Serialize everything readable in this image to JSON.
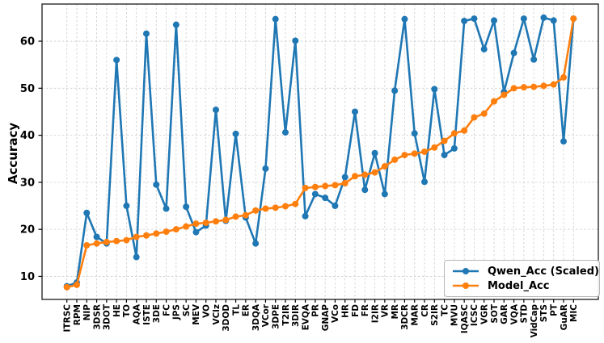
{
  "chart_data": {
    "type": "line",
    "title": "",
    "xlabel": "",
    "ylabel": "Accuracy",
    "ylim": [
      5.1,
      67.9
    ],
    "yticks": [
      10,
      20,
      30,
      40,
      50,
      60
    ],
    "grid": "dashed-both-axes",
    "legend_position": "lower right",
    "categories": [
      "ITRSC",
      "RPM",
      "NIP",
      "3DSR",
      "3DOT",
      "HE",
      "TO",
      "AQA",
      "ISTE",
      "3DE",
      "FC",
      "JPS",
      "SC",
      "MEV",
      "VO",
      "VClz",
      "3DOD",
      "TL",
      "ER",
      "3DQA",
      "VCor",
      "3DPE",
      "T2IR",
      "3DIR",
      "EVQA",
      "PR",
      "GNAP",
      "VCo",
      "HR",
      "FD",
      "FR",
      "I2IR",
      "VR",
      "MR",
      "3DCR",
      "MAR",
      "CR",
      "S2IR",
      "TC",
      "MVU",
      "IQASC",
      "ICSC",
      "VGR",
      "SOT",
      "GAR",
      "VQA",
      "STD",
      "VidCap",
      "STS",
      "PT",
      "GuAR",
      "MIC"
    ],
    "series": [
      {
        "name": "Qwen_Acc (Scaled)",
        "color": "#1f77b4",
        "values": [
          7.9,
          8.7,
          23.5,
          18.4,
          17.0,
          56.0,
          25.0,
          14.1,
          61.6,
          29.5,
          24.4,
          63.5,
          24.8,
          19.4,
          20.8,
          45.4,
          21.8,
          40.3,
          22.5,
          17.0,
          32.9,
          64.7,
          40.6,
          60.1,
          22.8,
          27.5,
          26.7,
          25.0,
          31.1,
          45.0,
          28.4,
          36.2,
          27.5,
          49.5,
          64.7,
          40.4,
          30.1,
          49.8,
          35.8,
          37.2,
          64.3,
          64.8,
          58.3,
          64.4,
          49.2,
          57.5,
          64.8,
          56.1,
          65.0,
          64.4,
          38.7,
          64.8
        ]
      },
      {
        "name": "Model_Acc",
        "color": "#ff7f0e",
        "values": [
          7.7,
          8.2,
          16.6,
          17.0,
          17.3,
          17.5,
          17.7,
          18.4,
          18.7,
          19.1,
          19.5,
          20.0,
          20.6,
          21.2,
          21.4,
          21.7,
          22.0,
          22.7,
          23.0,
          24.0,
          24.4,
          24.6,
          24.9,
          25.4,
          28.8,
          29.0,
          29.2,
          29.4,
          29.8,
          31.3,
          31.6,
          32.1,
          33.4,
          34.8,
          35.8,
          36.1,
          36.5,
          37.4,
          38.8,
          40.4,
          41.0,
          43.8,
          44.6,
          47.2,
          48.6,
          50.0,
          50.2,
          50.3,
          50.5,
          50.8,
          52.3,
          64.8
        ]
      }
    ]
  }
}
